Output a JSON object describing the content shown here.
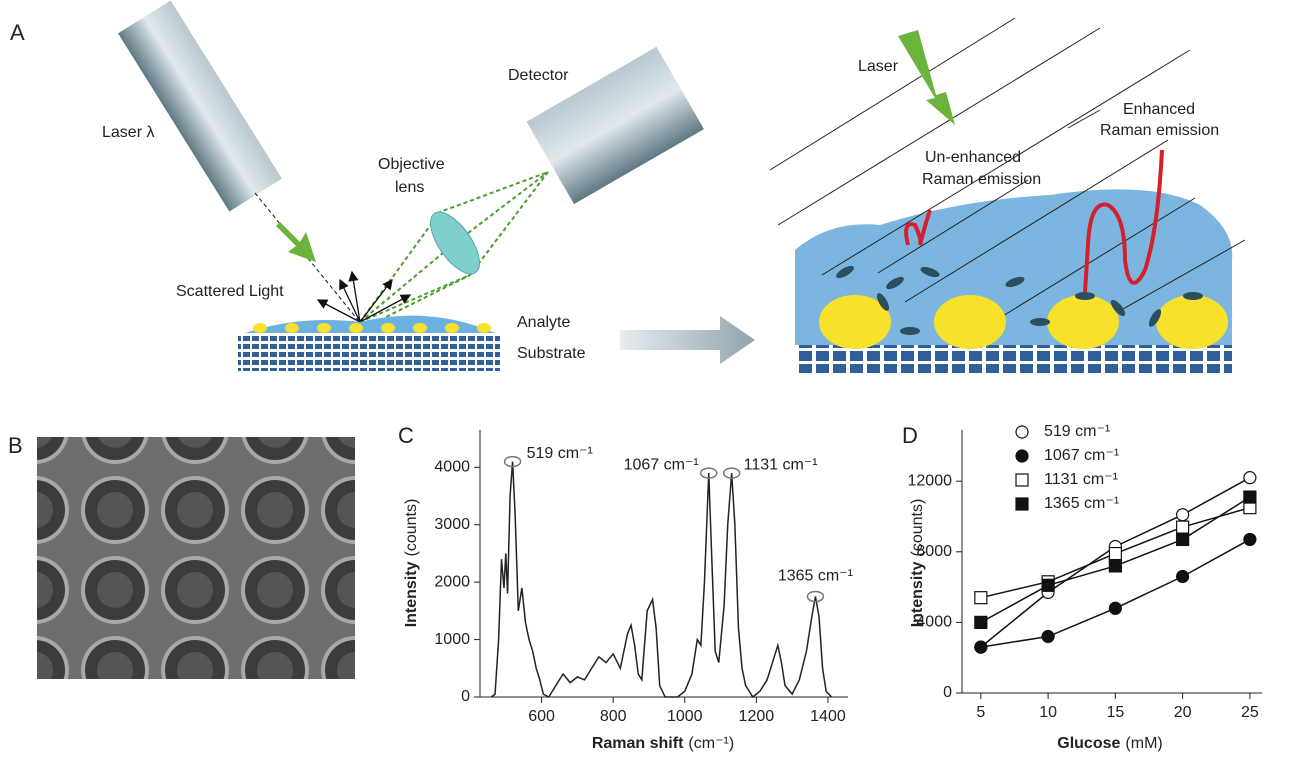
{
  "panel_labels": {
    "a": "A",
    "b": "B",
    "c": "C",
    "d": "D"
  },
  "diagram_a": {
    "laser_left": "Laser λ",
    "detector": "Detector",
    "objective_lens": [
      "Objective",
      "lens"
    ],
    "scattered_light": "Scattered Light",
    "analyte": "Analyte",
    "substrate": "Substrate",
    "laser_right": "Laser",
    "unenhanced": [
      "Un-enhanced",
      "Raman emission"
    ],
    "enhanced": [
      "Enhanced",
      "Raman emission"
    ]
  },
  "chart_data": [
    {
      "type": "line",
      "color": "#222",
      "x": [
        460,
        470,
        480,
        488,
        495,
        500,
        505,
        512,
        519,
        526,
        535,
        545,
        555,
        565,
        575,
        585,
        595,
        605,
        620,
        640,
        660,
        680,
        700,
        720,
        740,
        760,
        780,
        800,
        820,
        840,
        850,
        860,
        870,
        880,
        895,
        910,
        920,
        930,
        945,
        980,
        1000,
        1020,
        1035,
        1045,
        1055,
        1067,
        1075,
        1085,
        1095,
        1110,
        1120,
        1131,
        1140,
        1150,
        1160,
        1170,
        1190,
        1210,
        1230,
        1245,
        1260,
        1270,
        1280,
        1300,
        1320,
        1340,
        1355,
        1365,
        1375,
        1385,
        1395,
        1410
      ],
      "values": [
        0,
        50,
        1000,
        2400,
        1900,
        2500,
        1800,
        3500,
        4100,
        3200,
        1500,
        1900,
        1300,
        1000,
        800,
        500,
        300,
        50,
        0,
        200,
        400,
        250,
        350,
        300,
        500,
        700,
        600,
        750,
        500,
        1100,
        1250,
        900,
        400,
        300,
        1500,
        1700,
        1200,
        200,
        0,
        0,
        100,
        400,
        1000,
        900,
        2000,
        3900,
        2500,
        800,
        600,
        1600,
        3000,
        3900,
        3000,
        1200,
        500,
        200,
        0,
        100,
        300,
        600,
        900,
        600,
        200,
        50,
        300,
        800,
        1400,
        1750,
        1400,
        500,
        100,
        0
      ],
      "xlim": [
        428,
        1456
      ],
      "xticks": [
        600,
        800,
        1000,
        1200,
        1400
      ],
      "ylim": [
        0,
        4650
      ],
      "yticks": [
        0,
        1000,
        2000,
        3000,
        4000
      ],
      "xlabel": {
        "bold": "Raman shift",
        "rest": "(cm⁻¹)"
      },
      "ylabel": {
        "bold": "Intensity",
        "rest": "(counts)"
      },
      "annotations": [
        {
          "text": "519 cm⁻¹",
          "x": 519,
          "y": 4100
        },
        {
          "text": "1067 cm⁻¹",
          "x": 1067,
          "y": 3900
        },
        {
          "text": "1131 cm⁻¹",
          "x": 1131,
          "y": 3900
        },
        {
          "text": "1365 cm⁻¹",
          "x": 1365,
          "y": 1750
        }
      ]
    },
    {
      "type": "line",
      "x": [
        5,
        10,
        15,
        20,
        25
      ],
      "series": [
        {
          "name": "519 cm⁻¹",
          "color": "#111",
          "marker": "circle",
          "filled": false,
          "values": [
            2600,
            5700,
            8300,
            10100,
            12200
          ]
        },
        {
          "name": "1067 cm⁻¹",
          "color": "#111",
          "marker": "circle",
          "filled": true,
          "values": [
            2600,
            3200,
            4800,
            6600,
            8700
          ]
        },
        {
          "name": "1131 cm⁻¹",
          "color": "#111",
          "marker": "square",
          "filled": false,
          "values": [
            5400,
            6300,
            7900,
            9400,
            10500
          ]
        },
        {
          "name": "1365 cm⁻¹",
          "color": "#111",
          "marker": "square",
          "filled": true,
          "values": [
            4000,
            6100,
            7200,
            8700,
            11100
          ]
        }
      ],
      "xlim": [
        3.6,
        25.9
      ],
      "xticks": [
        5,
        10,
        15,
        20,
        25
      ],
      "ylim": [
        0,
        14900
      ],
      "yticks": [
        0,
        4000,
        8000,
        12000
      ],
      "xlabel": {
        "bold": "Glucose",
        "rest": "(mM)"
      },
      "ylabel": {
        "bold": "Intensity",
        "rest": "(counts)"
      },
      "legend": "upper left"
    }
  ]
}
